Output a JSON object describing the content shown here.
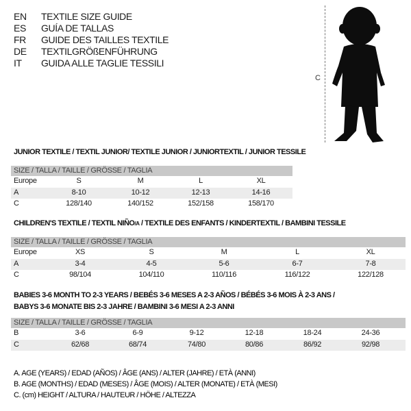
{
  "header": {
    "languages": [
      {
        "code": "EN",
        "text": "TEXTILE SIZE GUIDE"
      },
      {
        "code": "ES",
        "text": "GUÍA DE TALLAS"
      },
      {
        "code": "FR",
        "text": "GUIDE DES TAILLES TEXTILE"
      },
      {
        "code": "DE",
        "text": "TEXTILGRÖßENFÜHRUNG"
      },
      {
        "code": "IT",
        "text": "GUIDA ALLE TAGLIE TESSILI"
      }
    ]
  },
  "figure": {
    "height_label": "C"
  },
  "junior": {
    "title": "JUNIOR TEXTILE / TEXTIL JUNIOR/ TEXTILE JUNIOR / JUNIORTEXTIL / JUNIOR TESSILE",
    "header": "SIZE / TALLA / TAILLE / GRÖSSE / TAGLIA",
    "rows": [
      {
        "label": "Europe",
        "values": [
          "S",
          "M",
          "L",
          "XL"
        ]
      },
      {
        "label": "A",
        "values": [
          "8-10",
          "10-12",
          "12-13",
          "14-16"
        ]
      },
      {
        "label": "C",
        "values": [
          "128/140",
          "140/152",
          "152/158",
          "158/170"
        ]
      }
    ]
  },
  "children": {
    "title_a": "CHILDREN'S TEXTILE / TEXTIL NIÑO",
    "title_sub": "/A",
    "title_b": " / TEXTILE DES ENFANTS / KINDERTEXTIL / BAMBINI TESSILE",
    "header": "SIZE / TALLA / TAILLE / GRÖSSE / TAGLIA",
    "rows": [
      {
        "label": "Europe",
        "values": [
          "XS",
          "S",
          "M",
          "L",
          "XL"
        ]
      },
      {
        "label": "A",
        "values": [
          "3-4",
          "4-5",
          "5-6",
          "6-7",
          "7-8"
        ]
      },
      {
        "label": "C",
        "values": [
          "98/104",
          "104/110",
          "110/116",
          "116/122",
          "122/128"
        ]
      }
    ]
  },
  "babies": {
    "title_line1": "BABIES 3-6 MONTH TO 2-3 YEARS / BEBÉS 3-6 MESES A 2-3 AÑOS / BÉBÉS 3-6 MOIS À 2-3 ANS /",
    "title_line2": "BABYS 3-6 MONATE BIS 2-3 JAHRE / BAMBINI 3-6 MESI A 2-3 ANNI",
    "header": "SIZE / TALLA / TAILLE / GRÖSSE / TAGLIA",
    "rows": [
      {
        "label": "B",
        "values": [
          "3-6",
          "6-9",
          "9-12",
          "12-18",
          "18-24",
          "24-36"
        ]
      },
      {
        "label": "C",
        "values": [
          "62/68",
          "68/74",
          "74/80",
          "80/86",
          "86/92",
          "92/98"
        ]
      }
    ]
  },
  "legend": [
    "A. AGE (YEARS) / EDAD (AÑOS) / ÂGE (ANS) / ALTER (JAHRE) / ETÀ (ANNI)",
    "B. AGE (MONTHS) / EDAD (MESES) / ÂGE (MOIS) / ALTER (MONATE) / ETÀ (MESI)",
    "C. (cm) HEIGHT / ALTURA / HAUTEUR / HÖHE / ALTEZZA"
  ]
}
